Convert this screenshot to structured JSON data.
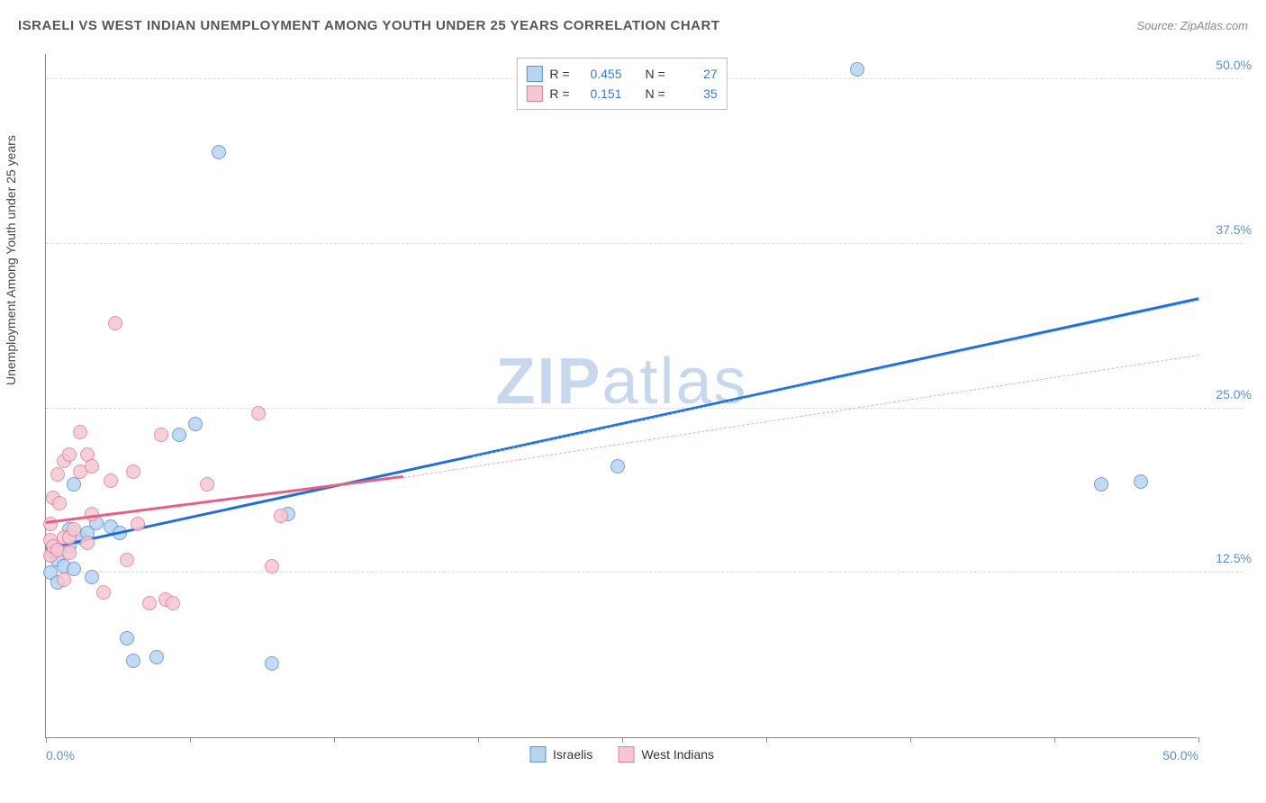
{
  "title": "ISRAELI VS WEST INDIAN UNEMPLOYMENT AMONG YOUTH UNDER 25 YEARS CORRELATION CHART",
  "source": "Source: ZipAtlas.com",
  "y_label": "Unemployment Among Youth under 25 years",
  "watermark": {
    "bold": "ZIP",
    "light": "atlas",
    "color": "#c7d8ee"
  },
  "chart": {
    "type": "scatter",
    "background_color": "#ffffff",
    "grid_color": "#dcdcdc",
    "axis_color": "#888888",
    "xlim": [
      0,
      50
    ],
    "ylim": [
      0,
      52
    ],
    "x_ticks": [
      0,
      6.25,
      12.5,
      18.75,
      25,
      31.25,
      37.5,
      43.75,
      50
    ],
    "x_tick_labels": {
      "0": "0.0%",
      "50": "50.0%"
    },
    "y_ticks": [
      12.5,
      25.0,
      37.5,
      50.0
    ],
    "y_tick_labels": [
      "12.5%",
      "25.0%",
      "37.5%",
      "50.0%"
    ],
    "tick_label_color": "#5b8fd6",
    "tick_label_fontsize": 14,
    "title_fontsize": 15,
    "title_color": "#555555",
    "marker_size": 16,
    "marker_opacity": 0.85,
    "series": [
      {
        "name": "Israelis",
        "fill_color": "#b8d4f0",
        "stroke_color": "#5b8fd6",
        "trend_solid_color": "#1f6fd6",
        "trend_dash_color": "#8fb8e8",
        "stats": {
          "R": "0.455",
          "N": "27"
        },
        "trend_solid": {
          "x1": 0,
          "y1": 14.2,
          "x2": 50,
          "y2": 33.2
        },
        "trend_dash": {
          "x1": 18.5,
          "y1": 21.3,
          "x2": 50,
          "y2": 33.2
        },
        "points": [
          [
            0.2,
            12.5
          ],
          [
            0.3,
            14.0
          ],
          [
            0.5,
            13.5
          ],
          [
            0.5,
            11.8
          ],
          [
            0.8,
            13.0
          ],
          [
            1.0,
            15.8
          ],
          [
            1.0,
            14.5
          ],
          [
            1.2,
            12.8
          ],
          [
            1.2,
            19.2
          ],
          [
            1.5,
            15.2
          ],
          [
            1.8,
            15.5
          ],
          [
            2.0,
            12.2
          ],
          [
            2.2,
            16.3
          ],
          [
            2.8,
            16.0
          ],
          [
            3.2,
            15.5
          ],
          [
            3.5,
            7.5
          ],
          [
            3.8,
            5.8
          ],
          [
            4.8,
            6.1
          ],
          [
            5.8,
            23.0
          ],
          [
            6.5,
            23.8
          ],
          [
            7.5,
            44.5
          ],
          [
            9.8,
            5.6
          ],
          [
            10.5,
            17.0
          ],
          [
            24.8,
            20.6
          ],
          [
            35.2,
            50.8
          ],
          [
            45.8,
            19.2
          ],
          [
            47.5,
            19.4
          ]
        ]
      },
      {
        "name": "West Indians",
        "fill_color": "#f6c7d3",
        "stroke_color": "#e07f9a",
        "trend_solid_color": "#e85f84",
        "trend_dash_color": "#f4a8ba",
        "stats": {
          "R": "0.151",
          "N": "35"
        },
        "trend_solid": {
          "x1": 0,
          "y1": 16.2,
          "x2": 15.5,
          "y2": 19.7
        },
        "trend_dash": {
          "x1": 15.5,
          "y1": 19.7,
          "x2": 50,
          "y2": 29.0
        },
        "points": [
          [
            0.2,
            13.8
          ],
          [
            0.2,
            15.0
          ],
          [
            0.2,
            16.2
          ],
          [
            0.3,
            18.2
          ],
          [
            0.3,
            14.5
          ],
          [
            0.5,
            20.0
          ],
          [
            0.5,
            14.2
          ],
          [
            0.6,
            17.8
          ],
          [
            0.8,
            21.0
          ],
          [
            0.8,
            15.2
          ],
          [
            0.8,
            12.0
          ],
          [
            1.0,
            21.5
          ],
          [
            1.0,
            15.2
          ],
          [
            1.0,
            14.0
          ],
          [
            1.2,
            15.8
          ],
          [
            1.5,
            23.2
          ],
          [
            1.5,
            20.2
          ],
          [
            1.8,
            21.5
          ],
          [
            1.8,
            14.8
          ],
          [
            2.0,
            17.0
          ],
          [
            2.0,
            20.6
          ],
          [
            2.5,
            11.0
          ],
          [
            2.8,
            19.5
          ],
          [
            3.0,
            31.5
          ],
          [
            3.5,
            13.5
          ],
          [
            3.8,
            20.2
          ],
          [
            4.0,
            16.2
          ],
          [
            4.5,
            10.2
          ],
          [
            5.0,
            23.0
          ],
          [
            5.2,
            10.5
          ],
          [
            5.5,
            10.2
          ],
          [
            7.0,
            19.2
          ],
          [
            9.2,
            24.6
          ],
          [
            9.8,
            13.0
          ],
          [
            10.2,
            16.8
          ]
        ]
      }
    ],
    "stats_legend": {
      "border_color": "#bbbbbb",
      "fontsize": 14,
      "label_color": "#333333",
      "value_color": "#3b7bd6"
    },
    "bottom_legend": {
      "fontsize": 14,
      "text_color": "#333333"
    }
  }
}
